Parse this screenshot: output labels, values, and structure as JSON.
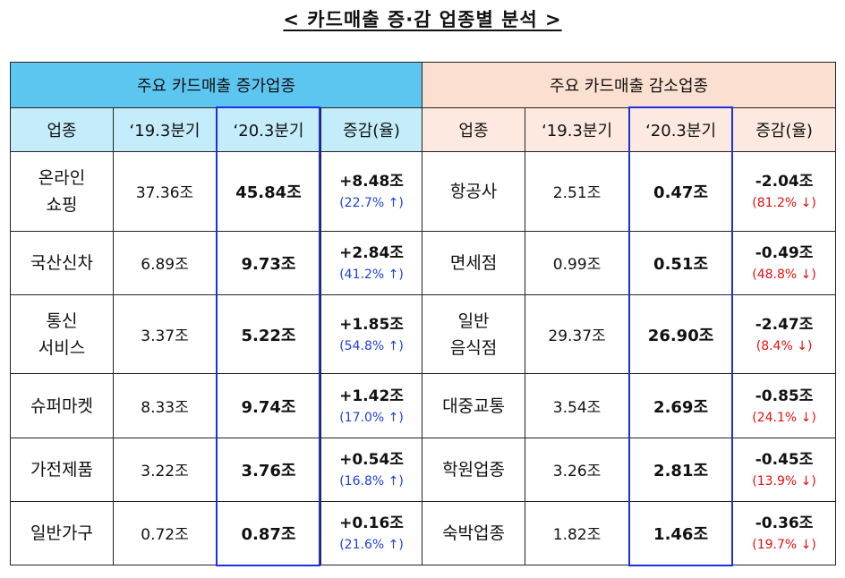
{
  "title": "< 카드매출 증·감 업종별 분석 >",
  "increase": {
    "group_label": "주요 카드매출 증가업종",
    "headers": [
      "업종",
      "‘19.3분기",
      "‘20.3분기",
      "증감(율)"
    ],
    "rows": [
      {
        "name": "온라인\n쇼핑",
        "q2019": "37.36조",
        "q2020": "45.84조",
        "change": "+8.48조",
        "rate": "(22.7% ↑)"
      },
      {
        "name": "국산신차",
        "q2019": "6.89조",
        "q2020": "9.73조",
        "change": "+2.84조",
        "rate": "(41.2% ↑)"
      },
      {
        "name": "통신\n서비스",
        "q2019": "3.37조",
        "q2020": "5.22조",
        "change": "+1.85조",
        "rate": "(54.8% ↑)"
      },
      {
        "name": "슈퍼마켓",
        "q2019": "8.33조",
        "q2020": "9.74조",
        "change": "+1.42조",
        "rate": "(17.0% ↑)"
      },
      {
        "name": "가전제품",
        "q2019": "3.22조",
        "q2020": "3.76조",
        "change": "+0.54조",
        "rate": "(16.8% ↑)"
      },
      {
        "name": "일반가구",
        "q2019": "0.72조",
        "q2020": "0.87조",
        "change": "+0.16조",
        "rate": "(21.6% ↑)"
      }
    ]
  },
  "decrease": {
    "group_label": "주요 카드매출 감소업종",
    "headers": [
      "업종",
      "‘19.3분기",
      "‘20.3분기",
      "증감(율)"
    ],
    "rows": [
      {
        "name": "항공사",
        "q2019": "2.51조",
        "q2020": "0.47조",
        "change": "-2.04조",
        "rate": "(81.2% ↓)"
      },
      {
        "name": "면세점",
        "q2019": "0.99조",
        "q2020": "0.51조",
        "change": "-0.49조",
        "rate": "(48.8% ↓)"
      },
      {
        "name": "일반\n음식점",
        "q2019": "29.37조",
        "q2020": "26.90조",
        "change": "-2.47조",
        "rate": "(8.4% ↓)"
      },
      {
        "name": "대중교통",
        "q2019": "3.54조",
        "q2020": "2.69조",
        "change": "-0.85조",
        "rate": "(24.1% ↓)"
      },
      {
        "name": "학원업종",
        "q2019": "3.26조",
        "q2020": "2.81조",
        "change": "-0.45조",
        "rate": "(13.9% ↓)"
      },
      {
        "name": "숙박업종",
        "q2019": "1.82조",
        "q2020": "1.46조",
        "change": "-0.36조",
        "rate": "(19.7% ↓)"
      }
    ]
  },
  "colors": {
    "increase_group_bg": "#5dc6f0",
    "increase_header_bg": "#c5ecfb",
    "decrease_group_bg": "#fbe0d1",
    "decrease_header_bg": "#fde9df",
    "up_rate": "#1f3fd9",
    "down_rate": "#e01010",
    "highlight_border": "#1f2ee0"
  }
}
